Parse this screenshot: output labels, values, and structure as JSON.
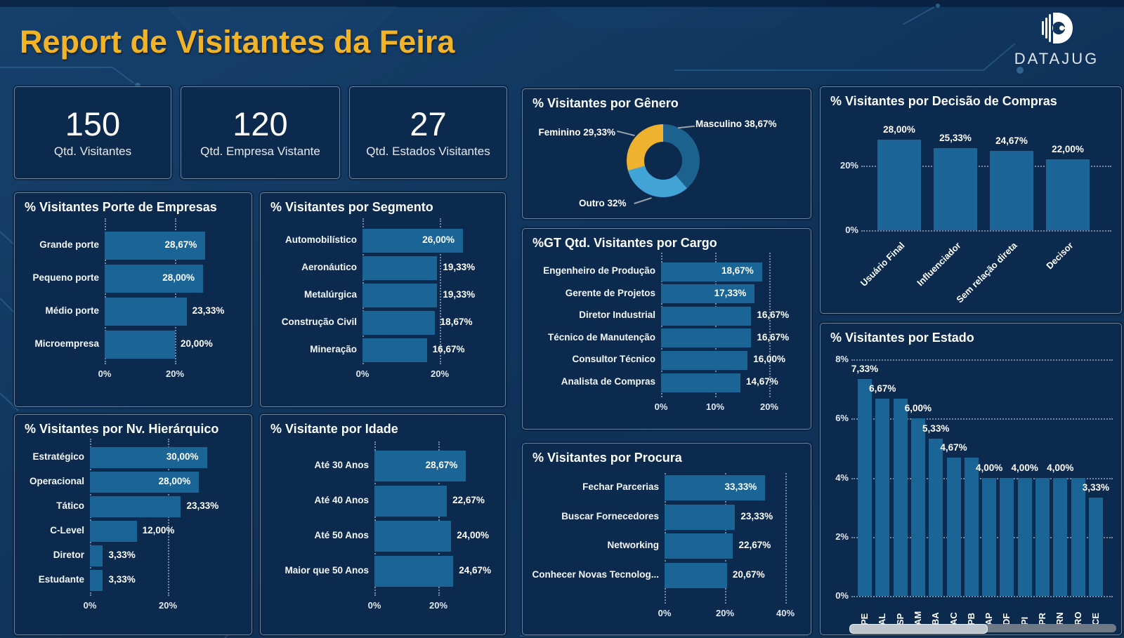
{
  "header": {
    "title": "Report de Visitantes da Feira",
    "brand": "DATAJUG"
  },
  "kpis": [
    {
      "value": "150",
      "label": "Qtd. Visitantes"
    },
    {
      "value": "120",
      "label": "Qtd. Empresa Vistante"
    },
    {
      "value": "27",
      "label": "Qtd. Estados Visitantes"
    }
  ],
  "colors": {
    "bar": "#1a6496",
    "donut_masculino": "#1c628f",
    "donut_outro": "#41a3d6",
    "donut_feminino": "#eeb22f",
    "title_accent": "#f2b327",
    "card_bg": "#0c2a4e"
  },
  "chart_data": [
    {
      "id": "genero",
      "type": "pie",
      "title": "% Visitantes por Gênero",
      "slices": [
        {
          "name": "Masculino",
          "value": 38.67,
          "label": "Masculino 38,67%",
          "color": "#1c628f"
        },
        {
          "name": "Outro",
          "value": 32.0,
          "label": "Outro 32%",
          "color": "#41a3d6"
        },
        {
          "name": "Feminino",
          "value": 29.33,
          "label": "Feminino 29,33%",
          "color": "#eeb22f"
        }
      ]
    },
    {
      "id": "decisao",
      "type": "bar",
      "orientation": "vertical",
      "title": "% Visitantes por Decisão de Compras",
      "categories": [
        "Usuário Final",
        "Influenciador",
        "Sem relação direta",
        "Decisor"
      ],
      "values": [
        28.0,
        25.33,
        24.67,
        22.0
      ],
      "labels": [
        "28,00%",
        "25,33%",
        "24,67%",
        "22,00%"
      ],
      "ylim": [
        0,
        32
      ],
      "yticks": [
        {
          "value": 0,
          "label": "0%"
        },
        {
          "value": 20,
          "label": "20%"
        }
      ],
      "grid": true
    },
    {
      "id": "porte",
      "type": "bar",
      "orientation": "horizontal",
      "title": "% Visitantes Porte de Empresas",
      "categories": [
        "Grande porte",
        "Pequeno porte",
        "Médio porte",
        "Microempresa"
      ],
      "values": [
        28.67,
        28.0,
        23.33,
        20.0
      ],
      "labels": [
        "28,67%",
        "28,00%",
        "23,33%",
        "20,00%"
      ],
      "label_inside": [
        true,
        true,
        false,
        false
      ],
      "xlim": [
        0,
        39
      ],
      "xticks": [
        {
          "value": 0,
          "label": "0%"
        },
        {
          "value": 20,
          "label": "20%"
        }
      ],
      "grid": true
    },
    {
      "id": "segmento",
      "type": "bar",
      "orientation": "horizontal",
      "title": "% Visitantes por Segmento",
      "categories": [
        "Automobilístico",
        "Aeronáutico",
        "Metalúrgica",
        "Construção Civil",
        "Mineração"
      ],
      "values": [
        26.0,
        19.33,
        19.33,
        18.67,
        16.67
      ],
      "labels": [
        "26,00%",
        "19,33%",
        "19,33%",
        "18,67%",
        "16,67%"
      ],
      "label_inside": [
        true,
        false,
        false,
        false,
        false
      ],
      "xlim": [
        0,
        34
      ],
      "xticks": [
        {
          "value": 0,
          "label": "0%"
        },
        {
          "value": 20,
          "label": "20%"
        }
      ],
      "grid": true
    },
    {
      "id": "cargo",
      "type": "bar",
      "orientation": "horizontal",
      "title": "%GT Qtd. Visitantes por Cargo",
      "categories": [
        "Engenheiro de Produção",
        "Gerente de Projetos",
        "Diretor Industrial",
        "Técnico de Manutenção",
        "Consultor Técnico",
        "Analista de Compras"
      ],
      "values": [
        18.67,
        17.33,
        16.67,
        16.67,
        16.0,
        14.67
      ],
      "labels": [
        "18,67%",
        "17,33%",
        "16,67%",
        "16,67%",
        "16,00%",
        "14,67%"
      ],
      "label_inside": [
        true,
        true,
        false,
        false,
        false,
        false
      ],
      "xlim": [
        0,
        26
      ],
      "xticks": [
        {
          "value": 0,
          "label": "0%"
        },
        {
          "value": 10,
          "label": "10%"
        },
        {
          "value": 20,
          "label": "20%"
        }
      ],
      "grid": true
    },
    {
      "id": "nv",
      "type": "bar",
      "orientation": "horizontal",
      "title": "% Visitantes por Nv. Hierárquico",
      "categories": [
        "Estratégico",
        "Operacional",
        "Tático",
        "C-Level",
        "Diretor",
        "Estudante"
      ],
      "values": [
        30.0,
        28.0,
        23.33,
        12.0,
        3.33,
        3.33
      ],
      "labels": [
        "30,00%",
        "28,00%",
        "23,33%",
        "12,00%",
        "3,33%",
        "3,33%"
      ],
      "label_inside": [
        true,
        true,
        false,
        false,
        false,
        false
      ],
      "xlim": [
        0,
        39
      ],
      "xticks": [
        {
          "value": 0,
          "label": "0%"
        },
        {
          "value": 20,
          "label": "20%"
        }
      ],
      "grid": true
    },
    {
      "id": "idade",
      "type": "bar",
      "orientation": "horizontal",
      "title": "% Visitante por Idade",
      "categories": [
        "Até 30 Anos",
        "Até 40 Anos",
        "Até 50 Anos",
        "Maior que 50 Anos"
      ],
      "values": [
        28.67,
        22.67,
        24.0,
        24.67
      ],
      "labels": [
        "28,67%",
        "22,67%",
        "24,00%",
        "24,67%"
      ],
      "label_inside": [
        true,
        false,
        false,
        false
      ],
      "xlim": [
        0,
        38
      ],
      "xticks": [
        {
          "value": 0,
          "label": "0%"
        },
        {
          "value": 20,
          "label": "20%"
        }
      ],
      "grid": true
    },
    {
      "id": "procura",
      "type": "bar",
      "orientation": "horizontal",
      "title": "% Visitantes por Procura",
      "categories": [
        "Fechar Parcerias",
        "Buscar Fornecedores",
        "Networking",
        "Conhecer Novas Tecnolog..."
      ],
      "values": [
        33.33,
        23.33,
        22.67,
        20.67
      ],
      "labels": [
        "33,33%",
        "23,33%",
        "22,67%",
        "20,67%"
      ],
      "label_inside": [
        true,
        false,
        false,
        false
      ],
      "xlim": [
        0,
        48
      ],
      "xticks": [
        {
          "value": 0,
          "label": "0%"
        },
        {
          "value": 20,
          "label": "20%"
        },
        {
          "value": 40,
          "label": "40%"
        }
      ],
      "grid": true
    },
    {
      "id": "estado",
      "type": "bar",
      "orientation": "vertical",
      "title": "% Visitantes por Estado",
      "categories": [
        "PE",
        "AL",
        "SP",
        "AM",
        "BA",
        "AC",
        "PB",
        "AP",
        "DF",
        "PI",
        "PR",
        "RN",
        "RO",
        "CE"
      ],
      "values": [
        7.33,
        6.67,
        6.67,
        6.0,
        5.33,
        4.67,
        4.67,
        4.0,
        4.0,
        4.0,
        4.0,
        4.0,
        4.0,
        3.33
      ],
      "labels": [
        "7,33%",
        "6,67%",
        "",
        "6,00%",
        "5,33%",
        "4,67%",
        "",
        "4,00%",
        "",
        "4,00%",
        "",
        "4,00%",
        "",
        "3,33%"
      ],
      "ylim": [
        0,
        8
      ],
      "yticks": [
        {
          "value": 0,
          "label": "0%"
        },
        {
          "value": 2,
          "label": "2%"
        },
        {
          "value": 4,
          "label": "4%"
        },
        {
          "value": 6,
          "label": "6%"
        },
        {
          "value": 8,
          "label": "8%"
        }
      ],
      "grid": true,
      "scrollbar": true
    }
  ]
}
